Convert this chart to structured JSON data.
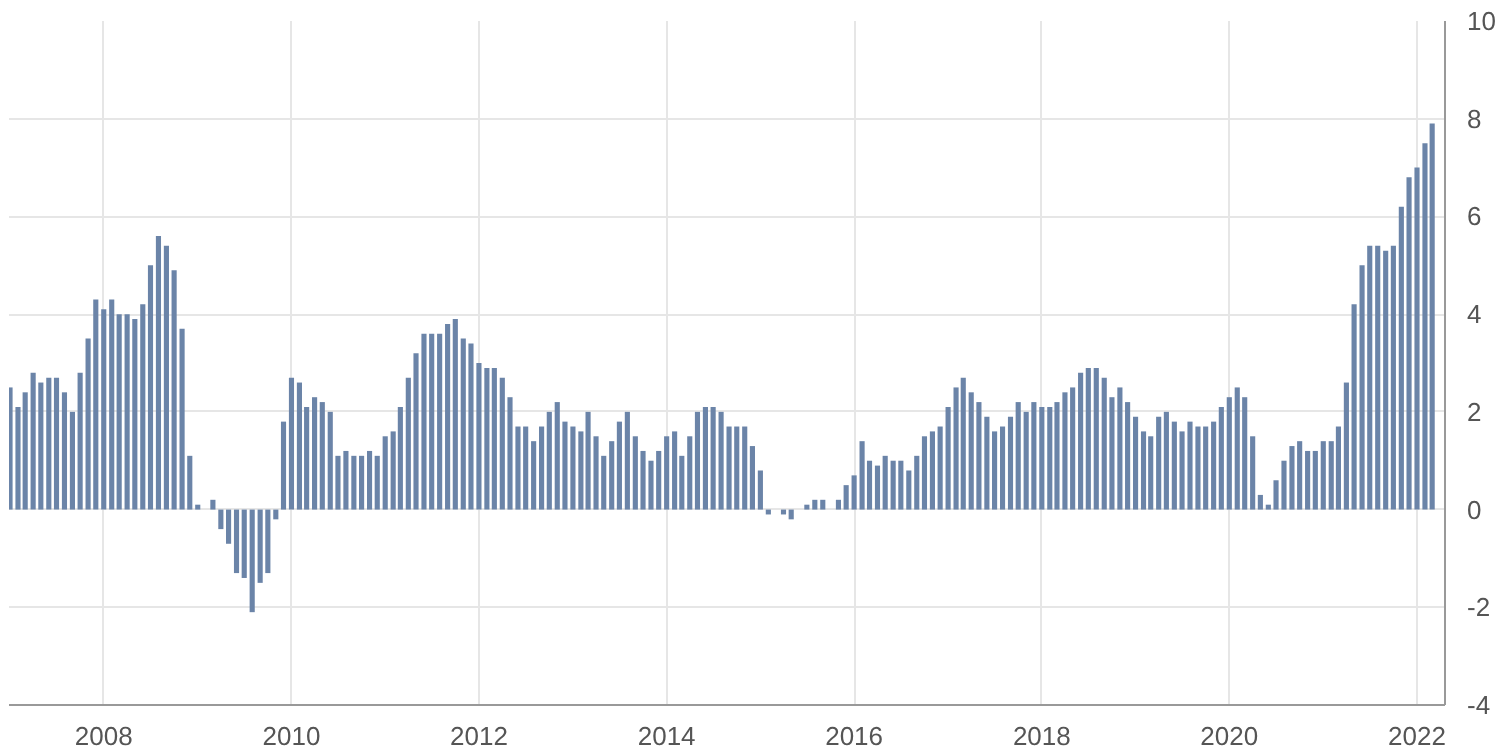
{
  "chart_data": {
    "type": "bar",
    "color": "#6b84a8",
    "x": [
      "2007-01",
      "2007-02",
      "2007-03",
      "2007-04",
      "2007-05",
      "2007-06",
      "2007-07",
      "2007-08",
      "2007-09",
      "2007-10",
      "2007-11",
      "2007-12",
      "2008-01",
      "2008-02",
      "2008-03",
      "2008-04",
      "2008-05",
      "2008-06",
      "2008-07",
      "2008-08",
      "2008-09",
      "2008-10",
      "2008-11",
      "2008-12",
      "2009-01",
      "2009-02",
      "2009-03",
      "2009-04",
      "2009-05",
      "2009-06",
      "2009-07",
      "2009-08",
      "2009-09",
      "2009-10",
      "2009-11",
      "2009-12",
      "2010-01",
      "2010-02",
      "2010-03",
      "2010-04",
      "2010-05",
      "2010-06",
      "2010-07",
      "2010-08",
      "2010-09",
      "2010-10",
      "2010-11",
      "2010-12",
      "2011-01",
      "2011-02",
      "2011-03",
      "2011-04",
      "2011-05",
      "2011-06",
      "2011-07",
      "2011-08",
      "2011-09",
      "2011-10",
      "2011-11",
      "2011-12",
      "2012-01",
      "2012-02",
      "2012-03",
      "2012-04",
      "2012-05",
      "2012-06",
      "2012-07",
      "2012-08",
      "2012-09",
      "2012-10",
      "2012-11",
      "2012-12",
      "2013-01",
      "2013-02",
      "2013-03",
      "2013-04",
      "2013-05",
      "2013-06",
      "2013-07",
      "2013-08",
      "2013-09",
      "2013-10",
      "2013-11",
      "2013-12",
      "2014-01",
      "2014-02",
      "2014-03",
      "2014-04",
      "2014-05",
      "2014-06",
      "2014-07",
      "2014-08",
      "2014-09",
      "2014-10",
      "2014-11",
      "2014-12",
      "2015-01",
      "2015-02",
      "2015-03",
      "2015-04",
      "2015-05",
      "2015-06",
      "2015-07",
      "2015-08",
      "2015-09",
      "2015-10",
      "2015-11",
      "2015-12",
      "2016-01",
      "2016-02",
      "2016-03",
      "2016-04",
      "2016-05",
      "2016-06",
      "2016-07",
      "2016-08",
      "2016-09",
      "2016-10",
      "2016-11",
      "2016-12",
      "2017-01",
      "2017-02",
      "2017-03",
      "2017-04",
      "2017-05",
      "2017-06",
      "2017-07",
      "2017-08",
      "2017-09",
      "2017-10",
      "2017-11",
      "2017-12",
      "2018-01",
      "2018-02",
      "2018-03",
      "2018-04",
      "2018-05",
      "2018-06",
      "2018-07",
      "2018-08",
      "2018-09",
      "2018-10",
      "2018-11",
      "2018-12",
      "2019-01",
      "2019-02",
      "2019-03",
      "2019-04",
      "2019-05",
      "2019-06",
      "2019-07",
      "2019-08",
      "2019-09",
      "2019-10",
      "2019-11",
      "2019-12",
      "2020-01",
      "2020-02",
      "2020-03",
      "2020-04",
      "2020-05",
      "2020-06",
      "2020-07",
      "2020-08",
      "2020-09",
      "2020-10",
      "2020-11",
      "2020-12",
      "2021-01",
      "2021-02",
      "2021-03",
      "2021-04",
      "2021-05",
      "2021-06",
      "2021-07",
      "2021-08",
      "2021-09",
      "2021-10",
      "2021-11",
      "2021-12",
      "2022-01",
      "2022-02",
      "2022-03"
    ],
    "values": [
      2.5,
      2.1,
      2.4,
      2.8,
      2.6,
      2.7,
      2.7,
      2.4,
      2.0,
      2.8,
      3.5,
      4.3,
      4.1,
      4.3,
      4.0,
      4.0,
      3.9,
      4.2,
      5.0,
      5.6,
      5.4,
      4.9,
      3.7,
      1.1,
      0.1,
      0.0,
      0.2,
      -0.4,
      -0.7,
      -1.3,
      -1.4,
      -2.1,
      -1.5,
      -1.3,
      -0.2,
      1.8,
      2.7,
      2.6,
      2.1,
      2.3,
      2.2,
      2.0,
      1.1,
      1.2,
      1.1,
      1.1,
      1.2,
      1.1,
      1.5,
      1.6,
      2.1,
      2.7,
      3.2,
      3.6,
      3.6,
      3.6,
      3.8,
      3.9,
      3.5,
      3.4,
      3.0,
      2.9,
      2.9,
      2.7,
      2.3,
      1.7,
      1.7,
      1.4,
      1.7,
      2.0,
      2.2,
      1.8,
      1.7,
      1.6,
      2.0,
      1.5,
      1.1,
      1.4,
      1.8,
      2.0,
      1.5,
      1.2,
      1.0,
      1.2,
      1.5,
      1.6,
      1.1,
      1.5,
      2.0,
      2.1,
      2.1,
      2.0,
      1.7,
      1.7,
      1.7,
      1.3,
      0.8,
      -0.1,
      0.0,
      -0.1,
      -0.2,
      0.0,
      0.1,
      0.2,
      0.2,
      0.0,
      0.2,
      0.5,
      0.7,
      1.4,
      1.0,
      0.9,
      1.1,
      1.0,
      1.0,
      0.8,
      1.1,
      1.5,
      1.6,
      1.7,
      2.1,
      2.5,
      2.7,
      2.4,
      2.2,
      1.9,
      1.6,
      1.7,
      1.9,
      2.2,
      2.0,
      2.2,
      2.1,
      2.1,
      2.2,
      2.4,
      2.5,
      2.8,
      2.9,
      2.9,
      2.7,
      2.3,
      2.5,
      2.2,
      1.9,
      1.6,
      1.5,
      1.9,
      2.0,
      1.8,
      1.6,
      1.8,
      1.7,
      1.7,
      1.8,
      2.1,
      2.3,
      2.5,
      2.3,
      1.5,
      0.3,
      0.1,
      0.6,
      1.0,
      1.3,
      1.4,
      1.2,
      1.2,
      1.4,
      1.4,
      1.7,
      2.6,
      4.2,
      5.0,
      5.4,
      5.4,
      5.3,
      5.4,
      6.2,
      6.8,
      7.0,
      7.5,
      7.9
    ],
    "xlim": [
      "2006-12-28",
      "2022-04-20"
    ],
    "xticks": [
      "2008",
      "2010",
      "2012",
      "2014",
      "2016",
      "2018",
      "2020",
      "2022"
    ],
    "ylim": [
      -4,
      10
    ],
    "yticks": [
      -4,
      -2,
      0,
      2,
      4,
      6,
      8,
      10
    ],
    "grid": true
  }
}
